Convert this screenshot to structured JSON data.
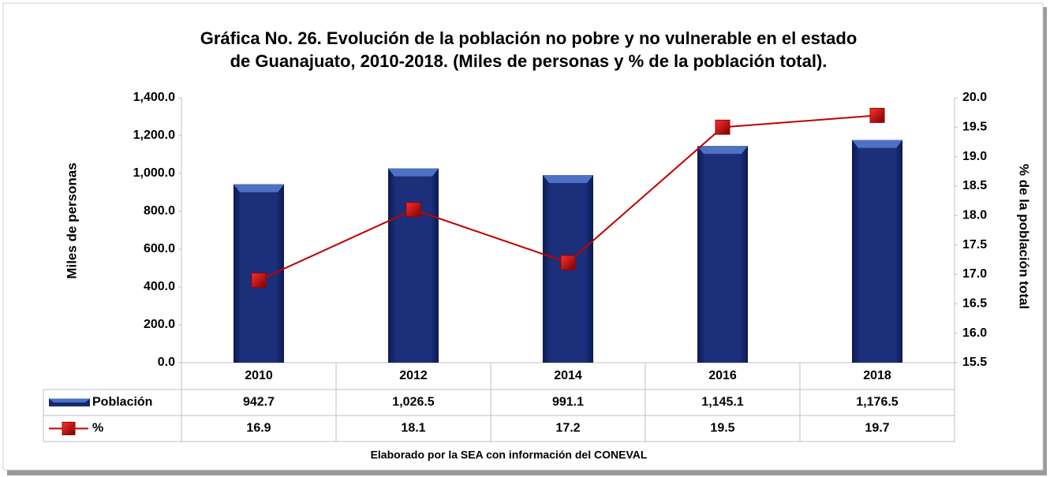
{
  "chart_data": {
    "type": "bar-line",
    "title": [
      "Gráfica No. 26. Evolución de la población no pobre y no vulnerable en el estado",
      "de Guanajuato, 2010-2018. (Miles de personas y % de la población total)."
    ],
    "y_label": "Miles de personas",
    "y2_label": "% de la población total",
    "source": "Elaborado por la SEA con información del CONEVAL",
    "categories": [
      "2010",
      "2012",
      "2014",
      "2016",
      "2018"
    ],
    "series": [
      {
        "name": "Población",
        "type": "bar",
        "color": "#13266b",
        "values": [
          942.7,
          1026.5,
          991.1,
          1145.1,
          1176.5
        ],
        "value_labels": [
          "942.7",
          "1,026.5",
          "991.1",
          "1,145.1",
          "1,176.5"
        ]
      },
      {
        "name": "%",
        "type": "line",
        "axis": "y2",
        "color": "#c00000",
        "values": [
          16.9,
          18.1,
          17.2,
          19.5,
          19.7
        ]
      }
    ],
    "ylim": [
      0,
      1400
    ],
    "yticks": [
      {
        "value": 0,
        "label": "0.0"
      },
      {
        "value": 200,
        "label": "200.0"
      },
      {
        "value": 400,
        "label": "400.0"
      },
      {
        "value": 600,
        "label": "600.0"
      },
      {
        "value": 800,
        "label": "800.0"
      },
      {
        "value": 1000,
        "label": "1,000.0"
      },
      {
        "value": 1200,
        "label": "1,200.0"
      },
      {
        "value": 1400,
        "label": "1,400.0"
      }
    ],
    "y2lim": [
      15.5,
      20
    ],
    "y2ticks": [
      15.5,
      {
        "value": 16,
        "label": "16.0"
      },
      16.5,
      {
        "value": 17,
        "label": "17.0"
      },
      17.5,
      {
        "value": 18,
        "label": "18.0"
      },
      18.5,
      {
        "value": 19,
        "label": "19.0"
      },
      19.5,
      {
        "value": 20,
        "label": "20.0"
      }
    ],
    "data_table": true
  }
}
